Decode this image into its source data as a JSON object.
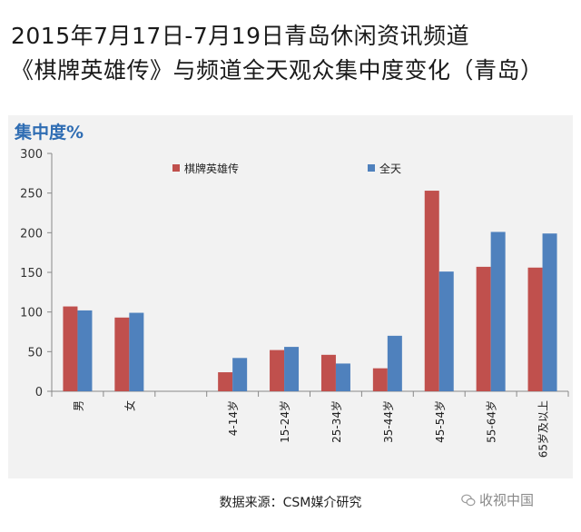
{
  "title": {
    "line1": "2015年7月17日-7月19日青岛休闲资讯频道",
    "line2": "《棋牌英雄传》与频道全天观众集中度变化（青岛）"
  },
  "source": "数据来源：CSM媒介研究",
  "watermark": {
    "text": "收视中国",
    "icon": "wechat-icon"
  },
  "chart_data": {
    "type": "bar",
    "ylabel": "集中度%",
    "ylim": [
      0,
      300
    ],
    "yticks": [
      0,
      50,
      100,
      150,
      200,
      250,
      300
    ],
    "grid": false,
    "legend_position": "top",
    "categories": [
      "男",
      "女",
      "",
      "4-14岁",
      "15-24岁",
      "25-34岁",
      "35-44岁",
      "45-54岁",
      "55-64岁",
      "65岁及以上"
    ],
    "series": [
      {
        "name": "棋牌英雄传",
        "color": "#c0504d",
        "values": [
          107,
          93,
          null,
          24,
          52,
          46,
          29,
          253,
          157,
          156
        ]
      },
      {
        "name": "全天",
        "color": "#4f81bd",
        "values": [
          102,
          99,
          null,
          42,
          56,
          35,
          70,
          151,
          201,
          199
        ]
      }
    ]
  }
}
